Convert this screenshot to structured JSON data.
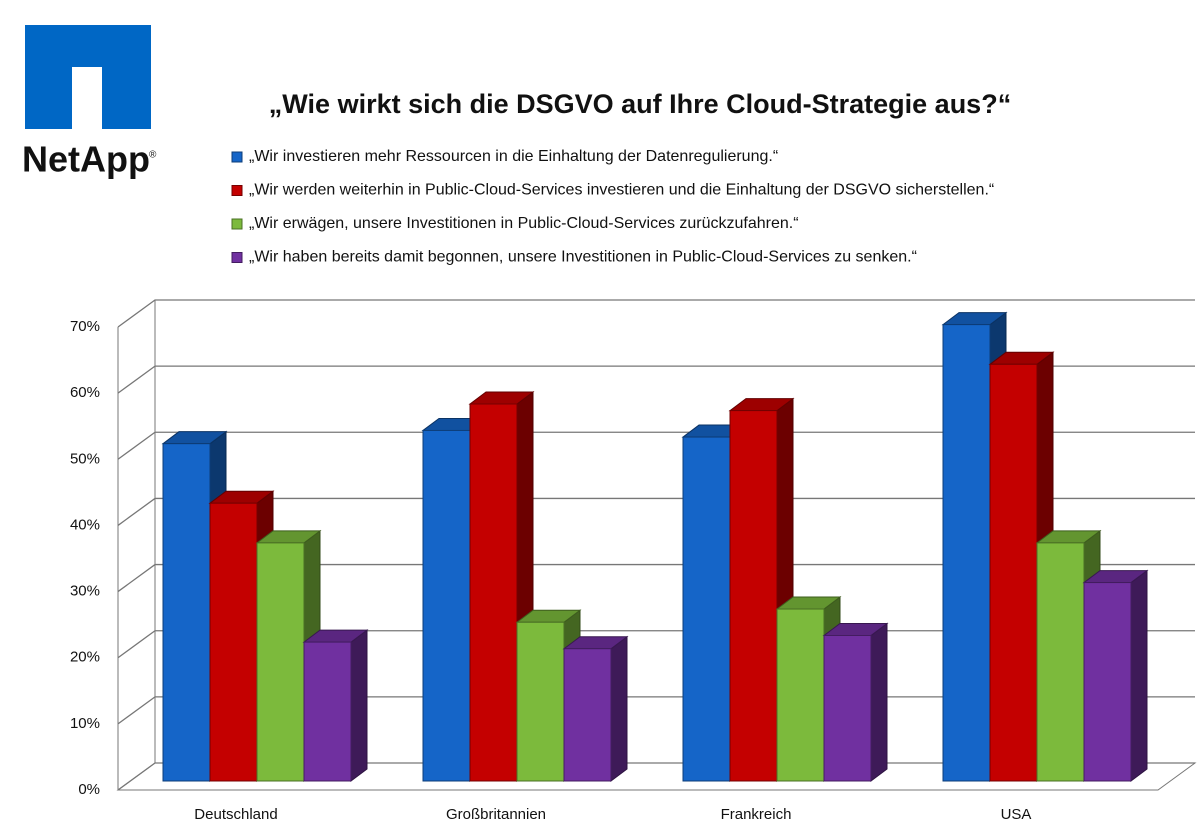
{
  "logo": {
    "text": "NetApp",
    "mark": "®"
  },
  "chart_data": {
    "type": "bar3d",
    "title": "„Wie wirkt sich die DSGVO auf Ihre Cloud-Strategie aus?“",
    "categories": [
      "Deutschland",
      "Großbritannien",
      "Frankreich",
      "USA"
    ],
    "series": [
      {
        "name": "„Wir investieren mehr Ressourcen in die Einhaltung der Datenregulierung.“",
        "color": "#1565c8",
        "values": [
          51,
          53,
          52,
          69
        ]
      },
      {
        "name": "„Wir werden weiterhin in Public-Cloud-Services investieren und die Einhaltung der DSGVO sicherstellen.“",
        "color": "#c40000",
        "values": [
          42,
          57,
          56,
          63
        ]
      },
      {
        "name": "„Wir erwägen, unsere Investitionen in Public-Cloud-Services zurückzufahren.“",
        "color": "#7cba3c",
        "values": [
          36,
          24,
          26,
          36
        ]
      },
      {
        "name": "„Wir haben bereits damit begonnen, unsere Investitionen in Public-Cloud-Services zu senken.“",
        "color": "#7030a0",
        "values": [
          21,
          20,
          22,
          30
        ]
      }
    ],
    "ylim": [
      0,
      70
    ],
    "yticks": [
      {
        "value": 0,
        "label": "0%"
      },
      {
        "value": 10,
        "label": "10%"
      },
      {
        "value": 20,
        "label": "20%"
      },
      {
        "value": 30,
        "label": "30%"
      },
      {
        "value": 40,
        "label": "40%"
      },
      {
        "value": 50,
        "label": "50%"
      },
      {
        "value": 60,
        "label": "60%"
      },
      {
        "value": 70,
        "label": "70%"
      }
    ],
    "grid": true
  }
}
